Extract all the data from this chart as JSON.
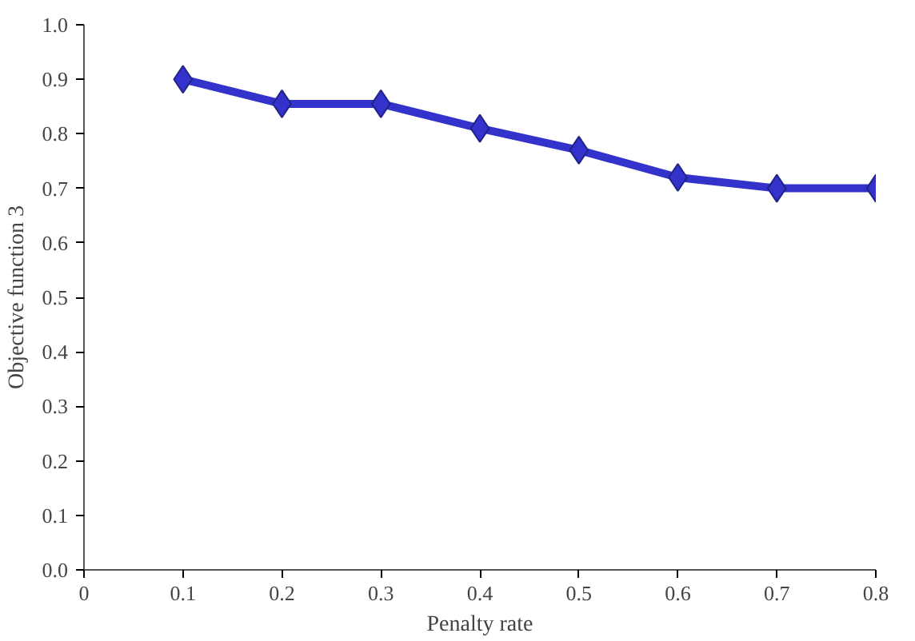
{
  "chart_data": {
    "type": "line",
    "xlabel": "Penalty rate",
    "ylabel": "Objective function 3",
    "x": [
      0.1,
      0.2,
      0.3,
      0.4,
      0.5,
      0.6,
      0.7,
      0.8
    ],
    "series": [
      {
        "color": "#3333cc",
        "values": [
          0.9,
          0.855,
          0.855,
          0.81,
          0.77,
          0.72,
          0.7,
          0.7
        ]
      }
    ],
    "xlim": [
      0,
      0.8
    ],
    "ylim": [
      0,
      1
    ],
    "xticks": [
      0,
      0.1,
      0.2,
      0.3,
      0.4,
      0.5,
      0.6,
      0.7,
      0.8
    ],
    "yticks": [
      {
        "value": 0,
        "label": "0.0"
      },
      0.1,
      0.2,
      0.3,
      0.4,
      0.5,
      0.6,
      0.7,
      0.8,
      0.9,
      {
        "value": 1,
        "label": "1.0"
      }
    ],
    "marker": "diamond",
    "line_style": "solid"
  }
}
